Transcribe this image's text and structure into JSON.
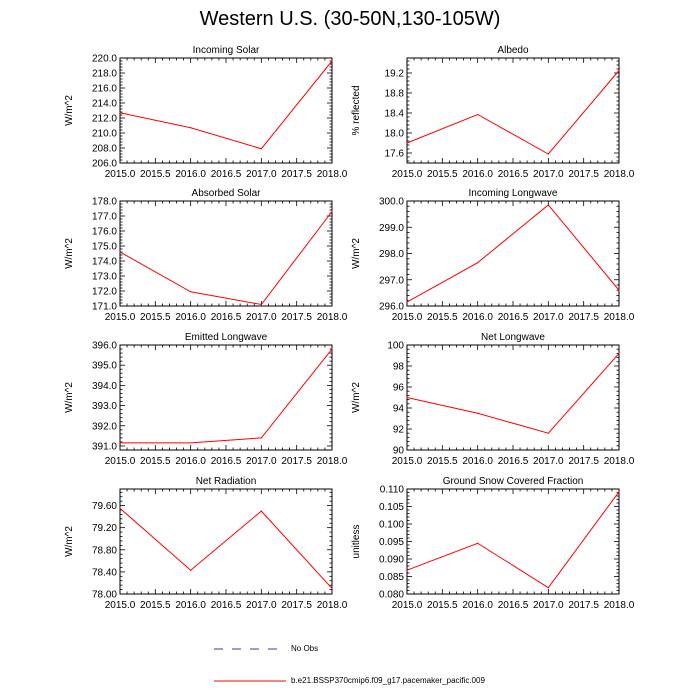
{
  "title": "Western U.S. (30-50N,130-105W)",
  "legend": {
    "obs_label": "No Obs",
    "model_label": "b.e21.BSSP370cmip6.f09_g17.pacemaker_pacific.009",
    "obs_color": "#3b3b8f",
    "model_color": "#ff0000"
  },
  "chart_data": [
    {
      "type": "line",
      "title": "Incoming Solar",
      "ylabel": "W/m^2",
      "xlabel": "",
      "x": [
        2015,
        2016,
        2017,
        2018
      ],
      "series": [
        {
          "name": "b.e21.BSSP370cmip6.f09_g17.pacemaker_pacific.009",
          "values": [
            212.7,
            210.7,
            207.9,
            219.6
          ]
        }
      ],
      "xlim": [
        2015,
        2018
      ],
      "ylim": [
        206,
        220
      ],
      "xticks": [
        "2015.0",
        "2015.5",
        "2016.0",
        "2016.5",
        "2017.0",
        "2017.5",
        "2018.0"
      ],
      "yticks": [
        "206.0",
        "208.0",
        "210.0",
        "212.0",
        "214.0",
        "216.0",
        "218.0",
        "220.0"
      ]
    },
    {
      "type": "line",
      "title": "Albedo",
      "ylabel": "% reflected",
      "xlabel": "",
      "x": [
        2015,
        2016,
        2017,
        2018
      ],
      "series": [
        {
          "name": "b.e21.BSSP370cmip6.f09_g17.pacemaker_pacific.009",
          "values": [
            17.8,
            18.37,
            17.58,
            19.25
          ]
        }
      ],
      "xlim": [
        2015,
        2018
      ],
      "ylim": [
        17.4,
        19.5
      ],
      "xticks": [
        "2015.0",
        "2015.5",
        "2016.0",
        "2016.5",
        "2017.0",
        "2017.5",
        "2018.0"
      ],
      "yticks": [
        "17.6",
        "18.0",
        "18.4",
        "18.8",
        "19.2"
      ]
    },
    {
      "type": "line",
      "title": "Absorbed Solar",
      "ylabel": "W/m^2",
      "xlabel": "",
      "x": [
        2015,
        2016,
        2017,
        2018
      ],
      "series": [
        {
          "name": "b.e21.BSSP370cmip6.f09_g17.pacemaker_pacific.009",
          "values": [
            174.6,
            171.95,
            171.1,
            177.3
          ]
        }
      ],
      "xlim": [
        2015,
        2018
      ],
      "ylim": [
        171,
        178
      ],
      "xticks": [
        "2015.0",
        "2015.5",
        "2016.0",
        "2016.5",
        "2017.0",
        "2017.5",
        "2018.0"
      ],
      "yticks": [
        "171.0",
        "172.0",
        "173.0",
        "174.0",
        "175.0",
        "176.0",
        "177.0",
        "178.0"
      ]
    },
    {
      "type": "line",
      "title": "Incoming Longwave",
      "ylabel": "W/m^2",
      "xlabel": "",
      "x": [
        2015,
        2016,
        2017,
        2018
      ],
      "series": [
        {
          "name": "b.e21.BSSP370cmip6.f09_g17.pacemaker_pacific.009",
          "values": [
            296.15,
            297.65,
            299.85,
            296.6
          ]
        }
      ],
      "xlim": [
        2015,
        2018
      ],
      "ylim": [
        296,
        300
      ],
      "xticks": [
        "2015.0",
        "2015.5",
        "2016.0",
        "2016.5",
        "2017.0",
        "2017.5",
        "2018.0"
      ],
      "yticks": [
        "296.0",
        "297.0",
        "298.0",
        "299.0",
        "300.0"
      ]
    },
    {
      "type": "line",
      "title": "Emitted Longwave",
      "ylabel": "W/m^2",
      "xlabel": "",
      "x": [
        2015,
        2016,
        2017,
        2018
      ],
      "series": [
        {
          "name": "b.e21.BSSP370cmip6.f09_g17.pacemaker_pacific.009",
          "values": [
            391.15,
            391.15,
            391.4,
            395.8
          ]
        }
      ],
      "xlim": [
        2015,
        2018
      ],
      "ylim": [
        390.8,
        396
      ],
      "xticks": [
        "2015.0",
        "2015.5",
        "2016.0",
        "2016.5",
        "2017.0",
        "2017.5",
        "2018.0"
      ],
      "yticks": [
        "391.0",
        "392.0",
        "393.0",
        "394.0",
        "395.0",
        "396.0"
      ]
    },
    {
      "type": "line",
      "title": "Net Longwave",
      "ylabel": "W/m^2",
      "xlabel": "",
      "x": [
        2015,
        2016,
        2017,
        2018
      ],
      "series": [
        {
          "name": "b.e21.BSSP370cmip6.f09_g17.pacemaker_pacific.009",
          "values": [
            95.0,
            93.5,
            91.6,
            99.2
          ]
        }
      ],
      "xlim": [
        2015,
        2018
      ],
      "ylim": [
        90,
        100
      ],
      "xticks": [
        "2015.0",
        "2015.5",
        "2016.0",
        "2016.5",
        "2017.0",
        "2017.5",
        "2018.0"
      ],
      "yticks": [
        "90",
        "92",
        "94",
        "96",
        "98",
        "100"
      ]
    },
    {
      "type": "line",
      "title": "Net Radiation",
      "ylabel": "W/m^2",
      "xlabel": "",
      "x": [
        2015,
        2016,
        2017,
        2018
      ],
      "series": [
        {
          "name": "b.e21.BSSP370cmip6.f09_g17.pacemaker_pacific.009",
          "values": [
            79.55,
            78.43,
            79.5,
            78.1
          ]
        }
      ],
      "xlim": [
        2015,
        2018
      ],
      "ylim": [
        78.0,
        79.9
      ],
      "xticks": [
        "2015.0",
        "2015.5",
        "2016.0",
        "2016.5",
        "2017.0",
        "2017.5",
        "2018.0"
      ],
      "yticks": [
        "78.00",
        "78.40",
        "78.80",
        "79.20",
        "79.60"
      ]
    },
    {
      "type": "line",
      "title": "Ground Snow Covered Fraction",
      "ylabel": "unitless",
      "xlabel": "",
      "x": [
        2015,
        2016,
        2017,
        2018
      ],
      "series": [
        {
          "name": "b.e21.BSSP370cmip6.f09_g17.pacemaker_pacific.009",
          "values": [
            0.0868,
            0.0945,
            0.0818,
            0.1092
          ]
        }
      ],
      "xlim": [
        2015,
        2018
      ],
      "ylim": [
        0.08,
        0.11
      ],
      "xticks": [
        "2015.0",
        "2015.5",
        "2016.0",
        "2016.5",
        "2017.0",
        "2017.5",
        "2018.0"
      ],
      "yticks": [
        "0.080",
        "0.085",
        "0.090",
        "0.095",
        "0.100",
        "0.105",
        "0.110"
      ]
    }
  ]
}
